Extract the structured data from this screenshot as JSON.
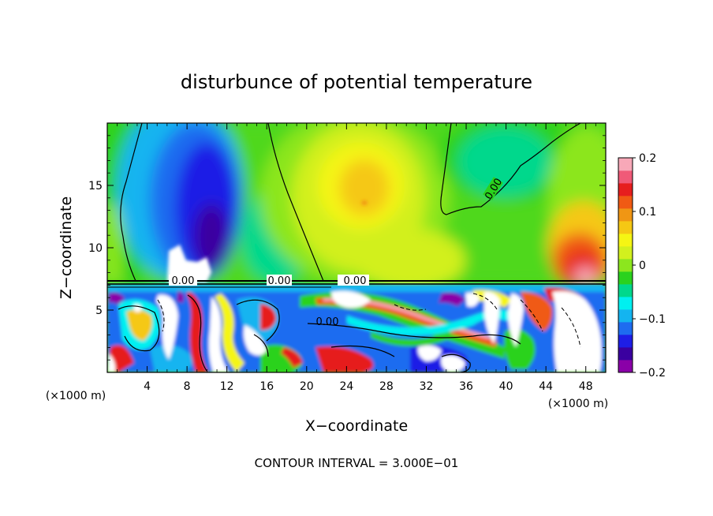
{
  "chart_data": {
    "type": "heatmap",
    "title": "disturbunce of potential temperature",
    "xlabel": "X−coordinate",
    "ylabel": "Z−coordinate",
    "x_unit_left": "(×1000 m)",
    "x_unit_right": "(×1000 m)",
    "xlim": [
      0,
      50
    ],
    "ylim": [
      0,
      20
    ],
    "x_ticks": [
      4,
      8,
      12,
      16,
      20,
      24,
      28,
      32,
      36,
      40,
      44,
      48
    ],
    "y_ticks": [
      5,
      10,
      15
    ],
    "colorbar": {
      "ticks": [
        0.2,
        0.1,
        0,
        -0.1,
        -0.2
      ],
      "tick_labels": [
        "0.2",
        "0.1",
        "0",
        "−0.1",
        "−0.2"
      ],
      "range": [
        -0.2,
        0.2
      ],
      "colors": [
        "#8a00a8",
        "#3a00a0",
        "#1e1ee6",
        "#1e6cf0",
        "#14b4f0",
        "#00f0f0",
        "#00d88c",
        "#2ad21e",
        "#8ce61e",
        "#d2f01e",
        "#f5f514",
        "#f5c814",
        "#f09614",
        "#f05a14",
        "#e61e1e",
        "#f05a78",
        "#f8a8b8"
      ]
    },
    "contour_labels": [
      "0.00",
      "0.00",
      "0.00",
      "0.00",
      "0.00"
    ],
    "annotation": "CONTOUR INTERVAL = 3.000E−01",
    "grid": false,
    "legend": "colorbar-right"
  },
  "colors": {
    "background": "#ffffff",
    "frame": "#000000"
  }
}
